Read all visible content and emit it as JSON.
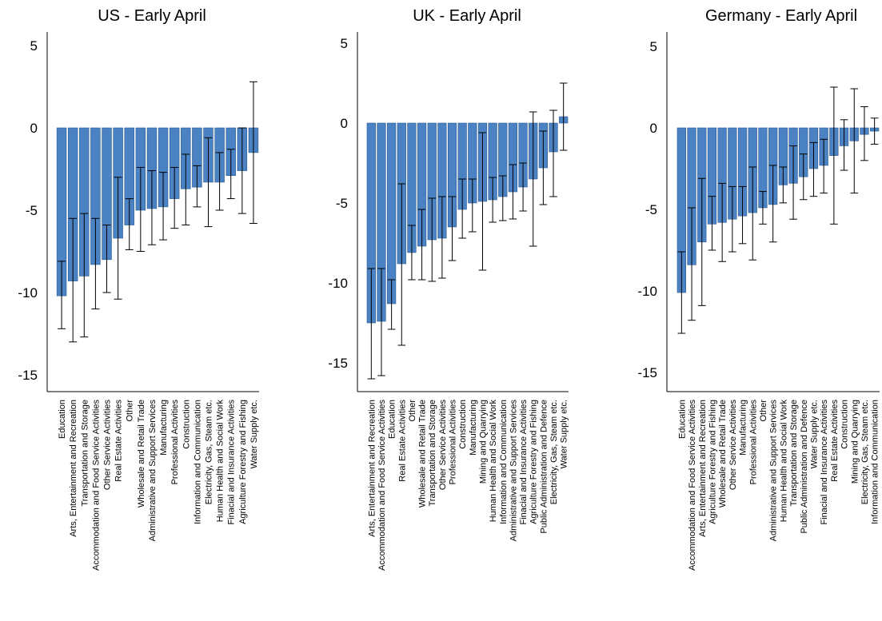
{
  "colors": {
    "bar": "#4a82c3",
    "bar_edge": "#2a5a93",
    "error": "#000000",
    "axis": "#000000"
  },
  "chart_data": [
    {
      "type": "bar",
      "title": "US - Early April",
      "ylim": [
        -15,
        5.5
      ],
      "yticks": [
        5,
        0,
        -5,
        -10,
        -15
      ],
      "grid": false,
      "categories": [
        "Education",
        "Arts, Entertainment and Recreation",
        "Transportation and Storage",
        "Accommodation and Food Service Activities",
        "Other Service Activities",
        "Real Estate Activities",
        "Other",
        "Wholesale and Retail Trade",
        "Administrative and Support Services",
        "Manufacturing",
        "Professional Activities",
        "Construction",
        "Information and Communication",
        "Electricity, Gas, Steam etc.",
        "Human Health and Social Work",
        "Finacial and Insurance Activities",
        "Agriculture Forestry and Fishing",
        "Water Supply etc."
      ],
      "values": [
        -10.2,
        -9.3,
        -9.0,
        -8.3,
        -8.0,
        -6.7,
        -5.9,
        -5.0,
        -4.9,
        -4.8,
        -4.3,
        -3.7,
        -3.6,
        -3.3,
        -3.3,
        -2.9,
        -2.6,
        -1.5
      ],
      "err_low": [
        -12.2,
        -13.0,
        -12.7,
        -11.0,
        -10.0,
        -10.4,
        -7.4,
        -7.5,
        -7.1,
        -6.8,
        -6.1,
        -5.9,
        -4.8,
        -6.0,
        -5.0,
        -4.3,
        -5.2,
        -5.8
      ],
      "err_high": [
        -8.1,
        -5.5,
        -5.2,
        -5.5,
        -5.9,
        -3.0,
        -4.3,
        -2.4,
        -2.6,
        -2.7,
        -2.4,
        -1.6,
        -2.3,
        -0.6,
        -1.5,
        -1.3,
        0.0,
        2.8
      ]
    },
    {
      "type": "bar",
      "title": "UK - Early April",
      "ylim": [
        -16.5,
        5.5
      ],
      "yticks": [
        5,
        0,
        -5,
        -10,
        -15
      ],
      "grid": false,
      "categories": [
        "Arts, Entertainment and Recreation",
        "Accommodation and Food Service Activities",
        "Education",
        "Real Estate Activities",
        "Other",
        "Wholesale and Retail Trade",
        "Transportation and Storage",
        "Other Service Activities",
        "Professional Activities",
        "Construction",
        "Manufacturing",
        "Mining and Quarrying",
        "Human Health and Social Work",
        "Information and Communication",
        "Administrative and Support Services",
        "Finacial and Insurance Activities",
        "Agriculture Forestry and Fishing",
        "Public Administration and Defence",
        "Electricity, Gas, Steam etc.",
        "Water Supply etc."
      ],
      "values": [
        -12.5,
        -12.4,
        -11.3,
        -8.8,
        -8.1,
        -7.7,
        -7.3,
        -7.2,
        -6.5,
        -5.4,
        -5.0,
        -4.9,
        -4.8,
        -4.6,
        -4.3,
        -4.0,
        -3.5,
        -2.8,
        -1.8,
        0.4
      ],
      "err_low": [
        -16.0,
        -15.8,
        -12.9,
        -13.9,
        -9.8,
        -9.8,
        -9.9,
        -9.7,
        -8.6,
        -7.2,
        -6.8,
        -9.2,
        -6.2,
        -6.1,
        -6.0,
        -5.5,
        -7.7,
        -5.1,
        -4.6,
        -1.7
      ],
      "err_high": [
        -9.1,
        -9.1,
        -9.8,
        -3.8,
        -6.4,
        -5.4,
        -4.7,
        -4.6,
        -4.6,
        -3.5,
        -3.5,
        -0.6,
        -3.4,
        -3.3,
        -2.6,
        -2.5,
        0.7,
        -0.5,
        0.8,
        2.5
      ]
    },
    {
      "type": "bar",
      "title": "Germany - Early April",
      "ylim": [
        -15,
        5.5
      ],
      "yticks": [
        5,
        0,
        -5,
        -10,
        -15
      ],
      "grid": false,
      "categories": [
        "Education",
        "Accommodation and Food Service Activities",
        "Arts, Entertainment and Recreation",
        "Agriculture Forestry and Fishing",
        "Wholesale and Retail Trade",
        "Other Service Activities",
        "Manufacturing",
        "Professional Activities",
        "Other",
        "Administrative and Support Services",
        "Human Health and Social Work",
        "Transportation and Storage",
        "Public Administration and Defence",
        "Water Supply etc.",
        "Finacial and Insurance Activities",
        "Real Estate Activities",
        "Construction",
        "Mining and Quarrying",
        "Electricity, Gas, Steam etc.",
        "Information and Communication"
      ],
      "values": [
        -10.1,
        -8.4,
        -7.0,
        -5.9,
        -5.8,
        -5.6,
        -5.4,
        -5.2,
        -4.9,
        -4.7,
        -3.5,
        -3.4,
        -3.0,
        -2.5,
        -2.3,
        -1.7,
        -1.1,
        -0.8,
        -0.4,
        -0.2
      ],
      "err_low": [
        -12.6,
        -11.8,
        -10.9,
        -7.5,
        -8.2,
        -7.6,
        -7.1,
        -8.1,
        -5.9,
        -7.0,
        -4.6,
        -5.6,
        -4.4,
        -4.2,
        -4.0,
        -5.9,
        -2.6,
        -4.0,
        -2.0,
        -1.0
      ],
      "err_high": [
        -7.6,
        -4.9,
        -3.1,
        -4.2,
        -3.4,
        -3.6,
        -3.6,
        -2.4,
        -3.9,
        -2.3,
        -2.4,
        -1.1,
        -1.6,
        -0.9,
        -0.7,
        2.5,
        0.5,
        2.4,
        1.3,
        0.6
      ]
    }
  ]
}
